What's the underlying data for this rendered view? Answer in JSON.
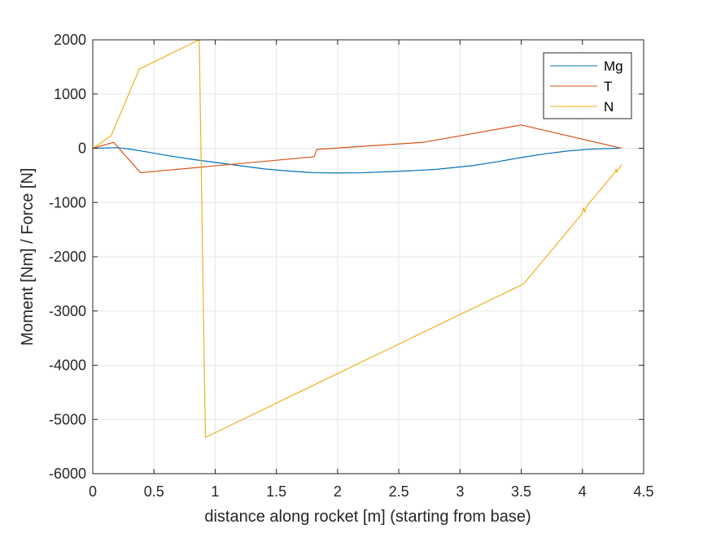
{
  "chart_data": {
    "type": "line",
    "xlabel": "distance along rocket [m] (starting from base)",
    "ylabel": "Moment [Nm] / Force [N]",
    "xlim": [
      0,
      4.5
    ],
    "ylim": [
      -6000,
      2000
    ],
    "xticks": [
      0,
      0.5,
      1,
      1.5,
      2,
      2.5,
      3,
      3.5,
      4,
      4.5
    ],
    "yticks": [
      -6000,
      -5000,
      -4000,
      -3000,
      -2000,
      -1000,
      0,
      1000,
      2000
    ],
    "xtick_labels": [
      "0",
      "0.5",
      "1",
      "1.5",
      "2",
      "2.5",
      "3",
      "3.5",
      "4",
      "4.5"
    ],
    "ytick_labels": [
      "-6000",
      "-5000",
      "-4000",
      "-3000",
      "-2000",
      "-1000",
      "0",
      "1000",
      "2000"
    ],
    "grid": true,
    "legend_position": "top-right",
    "series": [
      {
        "name": "Mg",
        "color": "#0072BD",
        "x": [
          0,
          0.1,
          0.2,
          0.3,
          0.45,
          0.6,
          0.8,
          1.0,
          1.2,
          1.4,
          1.6,
          1.8,
          2.0,
          2.2,
          2.5,
          2.8,
          3.1,
          3.3,
          3.5,
          3.7,
          3.9,
          4.1,
          4.3
        ],
        "y": [
          0,
          5,
          12,
          -15,
          -70,
          -130,
          -200,
          -260,
          -320,
          -380,
          -420,
          -450,
          -455,
          -450,
          -425,
          -390,
          -320,
          -250,
          -170,
          -100,
          -45,
          -12,
          0
        ]
      },
      {
        "name": "T",
        "color": "#D95319",
        "x": [
          0,
          0.17,
          0.39,
          1.79,
          1.81,
          1.83,
          2.7,
          3.5,
          4.32
        ],
        "y": [
          0,
          110,
          -450,
          -160,
          -150,
          -20,
          110,
          430,
          0
        ]
      },
      {
        "name": "N",
        "color": "#EDB120",
        "x": [
          0,
          0.15,
          0.38,
          0.87,
          0.92,
          3.52,
          4.0,
          4.01,
          4.02,
          4.03,
          4.27,
          4.275,
          4.28,
          4.32
        ],
        "y": [
          0,
          230,
          1460,
          2000,
          -5330,
          -2500,
          -1200,
          -1100,
          -1180,
          -1080,
          -430,
          -380,
          -440,
          -300
        ]
      }
    ]
  }
}
